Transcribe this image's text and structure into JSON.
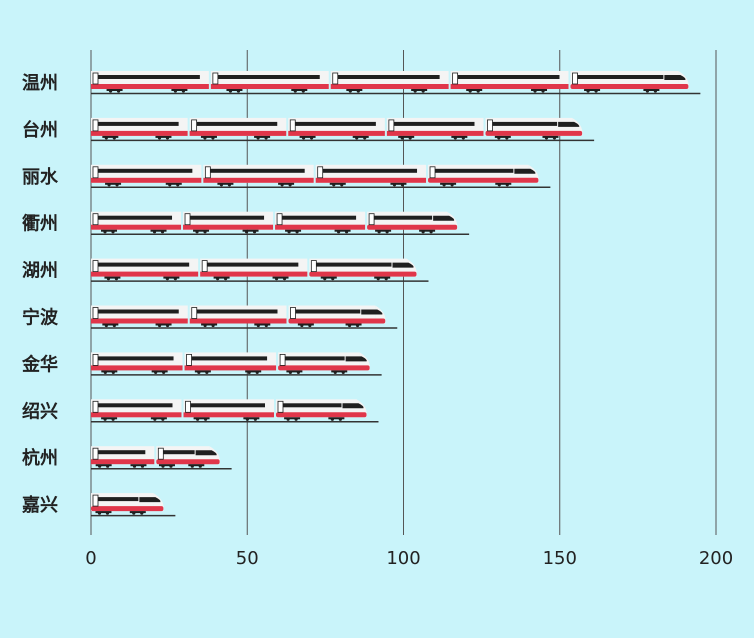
{
  "chart_data": {
    "type": "bar",
    "orientation": "horizontal",
    "categories": [
      "温州",
      "台州",
      "丽水",
      "衢州",
      "湖州",
      "宁波",
      "金华",
      "绍兴",
      "杭州",
      "嘉兴"
    ],
    "values": [
      195,
      161,
      147,
      121,
      108,
      98,
      93,
      92,
      45,
      27
    ],
    "xlim": [
      0,
      200
    ],
    "xticks": [
      0,
      50,
      100,
      150,
      200
    ],
    "title": "",
    "xlabel": "",
    "ylabel": "",
    "grid": "vertical",
    "bar_style": "high-speed-train",
    "colors": {
      "background": "#c9f4fa",
      "grid": "#555555",
      "train_body": "#f4f4f4",
      "train_stripe": "#e0364a",
      "train_window": "#1f1f1f",
      "underline": "#333333"
    }
  }
}
